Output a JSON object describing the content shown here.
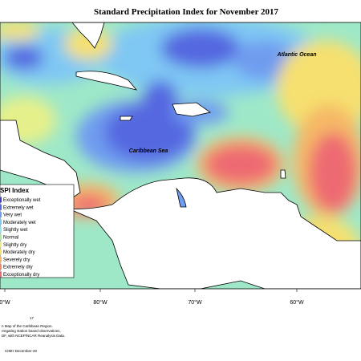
{
  "header": {
    "title": "Standard Precipitation Index for November 2017"
  },
  "map": {
    "labels": [
      "Atlantic Ocean",
      "Caribbean Sea"
    ],
    "longitudes": [
      "0°W",
      "80°W",
      "70°W",
      "60°W"
    ]
  },
  "legend": {
    "title": "SPI Index",
    "items": [
      {
        "label": "Exceptionally wet",
        "color": "#3a3fc4"
      },
      {
        "label": "Extremely wet",
        "color": "#5468e0"
      },
      {
        "label": "Very wet",
        "color": "#6f9cf0"
      },
      {
        "label": "Moderately wet",
        "color": "#7fc8f4"
      },
      {
        "label": "Slightly wet",
        "color": "#8ee8ee"
      },
      {
        "label": "Normal",
        "color": "#a8eea6"
      },
      {
        "label": "Slightly dry",
        "color": "#e6f08a"
      },
      {
        "label": "Moderately dry",
        "color": "#f6e070"
      },
      {
        "label": "Severely dry",
        "color": "#f6b866"
      },
      {
        "label": "Extremely dry",
        "color": "#f28a6a"
      },
      {
        "label": "Exceptionally dry",
        "color": "#ee6a72"
      }
    ]
  },
  "footer": {
    "number": "17",
    "lines": [
      "n Map of the Caribbean Region.",
      "rregating station based observations,",
      "DF, with NCEP/NCAR Reanalysis Data."
    ],
    "credit": "CIMH December-20"
  }
}
